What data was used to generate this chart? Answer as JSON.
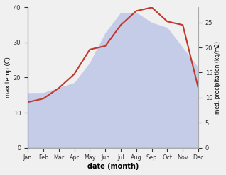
{
  "months": [
    "Jan",
    "Feb",
    "Mar",
    "Apr",
    "May",
    "Jun",
    "Jul",
    "Aug",
    "Sep",
    "Oct",
    "Nov",
    "Dec"
  ],
  "temp": [
    13,
    14,
    17,
    21,
    28,
    29,
    35,
    39,
    40,
    36,
    35,
    17
  ],
  "precip": [
    11,
    11,
    12,
    13,
    17,
    23,
    27,
    27,
    25,
    24,
    20,
    16
  ],
  "temp_color": "#c0392b",
  "precip_fill_color": "#c5cce8",
  "ylabel_left": "max temp (C)",
  "ylabel_right": "med. precipitation (kg/m2)",
  "xlabel": "date (month)",
  "ylim_left": [
    0,
    40
  ],
  "ylim_right": [
    0,
    28
  ],
  "yticks_left": [
    0,
    10,
    20,
    30,
    40
  ],
  "yticks_right": [
    0,
    5,
    10,
    15,
    20,
    25
  ],
  "bg_color": "#f0f0f0",
  "spine_color": "#aaaaaa"
}
